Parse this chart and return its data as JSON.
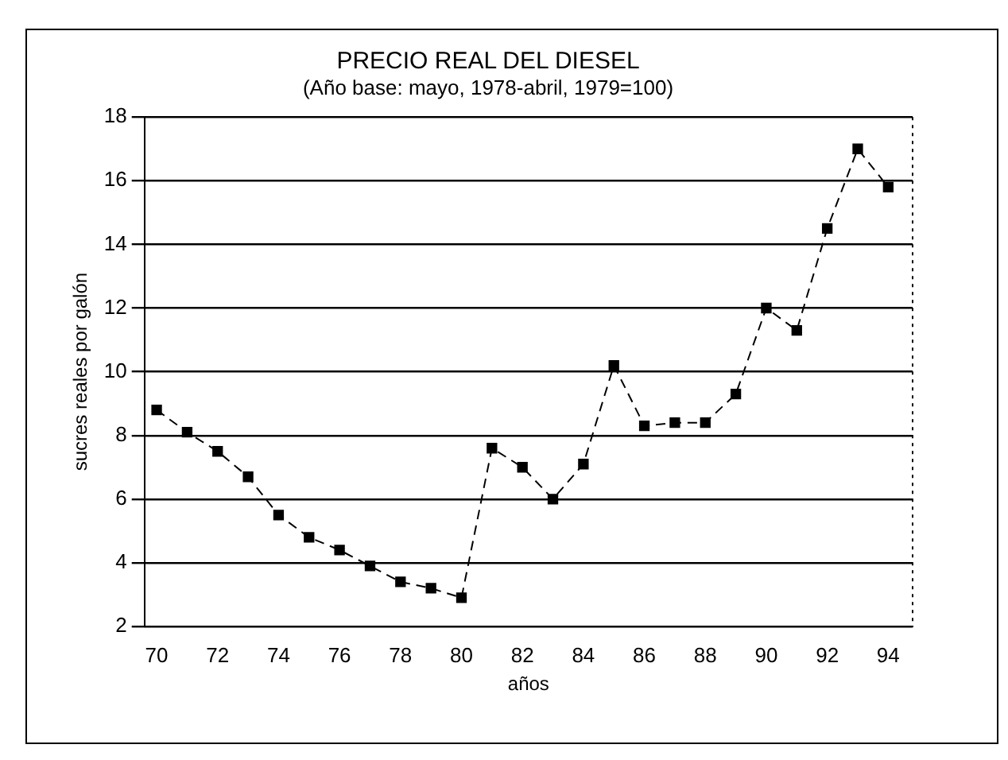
{
  "chart_data": {
    "type": "line",
    "title": "PRECIO REAL DEL DIESEL",
    "subtitle": "(Año base: mayo, 1978-abril, 1979=100)",
    "xlabel": "años",
    "ylabel": "sucres reales por galón",
    "x": [
      70,
      71,
      72,
      73,
      74,
      75,
      76,
      77,
      78,
      79,
      80,
      81,
      82,
      83,
      84,
      85,
      86,
      87,
      88,
      89,
      90,
      91,
      92,
      93,
      94
    ],
    "series": [
      {
        "color": "#000000",
        "values": [
          8.8,
          8.1,
          7.5,
          6.7,
          5.5,
          4.8,
          4.4,
          3.9,
          3.4,
          3.2,
          2.9,
          7.6,
          7.0,
          6.0,
          7.1,
          10.2,
          8.3,
          8.4,
          8.4,
          9.3,
          12.0,
          11.3,
          14.5,
          17.0,
          15.8
        ]
      }
    ],
    "xlim": [
      69.6,
      94.8
    ],
    "xticks": [
      70,
      72,
      74,
      76,
      78,
      80,
      82,
      84,
      86,
      88,
      90,
      92,
      94
    ],
    "ylim": [
      2,
      18
    ],
    "yticks": [
      2,
      4,
      6,
      8,
      10,
      12,
      14,
      16,
      18
    ],
    "grid": "y",
    "legend": false,
    "marker": "square",
    "line_style": "dashed"
  }
}
